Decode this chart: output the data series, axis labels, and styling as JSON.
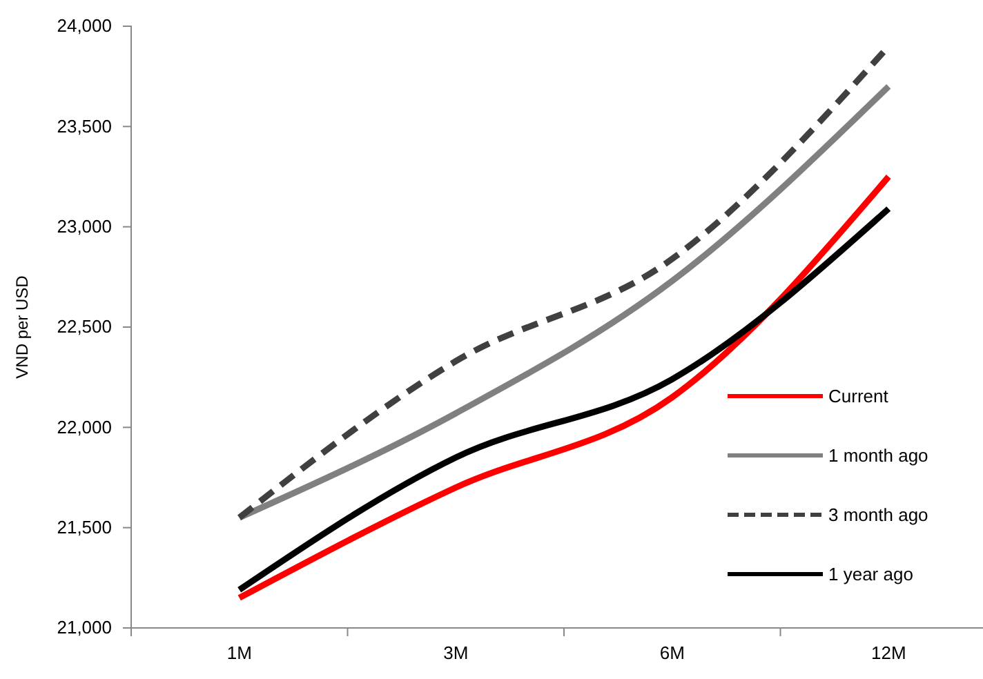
{
  "chart_data": {
    "type": "line",
    "ylabel": "VND per USD",
    "categories": [
      "1M",
      "3M",
      "6M",
      "12M"
    ],
    "series": [
      {
        "name": "Current",
        "color": "#ff0000",
        "values": [
          21150,
          21700,
          22150,
          23250
        ]
      },
      {
        "name": "1 month ago",
        "color": "#808080",
        "values": [
          21550,
          22070,
          22730,
          23700
        ]
      },
      {
        "name": "3 month ago",
        "color": "#404040",
        "values": [
          21550,
          22330,
          22840,
          23900
        ],
        "line_style": "dashed"
      },
      {
        "name": "1 year ago",
        "color": "#000000",
        "values": [
          21190,
          21850,
          22240,
          23090
        ]
      }
    ],
    "ylim": [
      21000,
      24000
    ],
    "yticks": [
      {
        "value": 21000,
        "label": "21,000"
      },
      {
        "value": 21500,
        "label": "21,500"
      },
      {
        "value": 22000,
        "label": "22,000"
      },
      {
        "value": 22500,
        "label": "22,500"
      },
      {
        "value": 23000,
        "label": "23,000"
      },
      {
        "value": 23500,
        "label": "23,500"
      },
      {
        "value": 24000,
        "label": "24,000"
      }
    ],
    "legend": "right",
    "grid": false
  }
}
